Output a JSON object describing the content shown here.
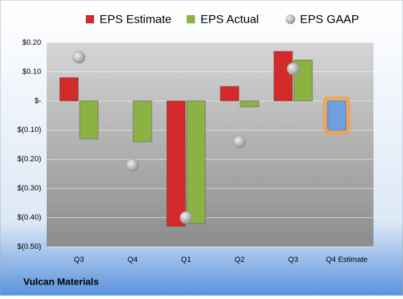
{
  "chart_data": {
    "type": "bar",
    "categories": [
      "Q3",
      "Q4",
      "Q1",
      "Q2",
      "Q3",
      "Q4 Estimate"
    ],
    "series": [
      {
        "name": "EPS Estimate",
        "color": "#d42a2a",
        "values": [
          0.08,
          null,
          -0.43,
          0.05,
          0.17,
          -0.1
        ],
        "colors": [
          "#d42a2a",
          "#d42a2a",
          "#d42a2a",
          "#d42a2a",
          "#d42a2a",
          "#6f9fdc"
        ]
      },
      {
        "name": "EPS Actual",
        "color": "#8cb243",
        "values": [
          -0.13,
          -0.14,
          -0.42,
          -0.02,
          0.14,
          null
        ]
      },
      {
        "name": "EPS GAAP",
        "color": "#b0b0b0",
        "type": "scatter",
        "values": [
          0.15,
          -0.22,
          -0.4,
          -0.14,
          0.11,
          null
        ]
      }
    ],
    "ylim": [
      -0.5,
      0.2
    ],
    "yticks": [
      {
        "value": 0.2,
        "label": "$0.20"
      },
      {
        "value": 0.1,
        "label": "$0.10"
      },
      {
        "value": 0,
        "label": "$-"
      },
      {
        "value": -0.1,
        "label": "$(0.10)"
      },
      {
        "value": -0.2,
        "label": "$(0.20)"
      },
      {
        "value": -0.3,
        "label": "$(0.30)"
      },
      {
        "value": -0.4,
        "label": "$(0.40)"
      },
      {
        "value": -0.5,
        "label": "$(0.50)"
      }
    ],
    "grid": true,
    "footer": "Vulcan Materials"
  }
}
